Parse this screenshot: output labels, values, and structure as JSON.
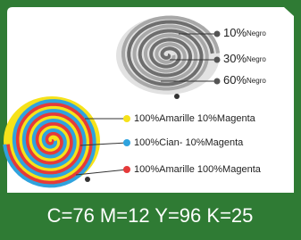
{
  "gray_labels": [
    {
      "amount": "10%",
      "ink": "Negro"
    },
    {
      "amount": "30%",
      "ink": "Negro"
    },
    {
      "amount": "60%",
      "ink": "Negro"
    }
  ],
  "color_labels": [
    "100%Amarille 10%Magenta",
    "100%Cian- 10%Magenta",
    "100%Amarille 100%Magenta"
  ],
  "footer": "C=76  M=12  Y=96  K=25"
}
